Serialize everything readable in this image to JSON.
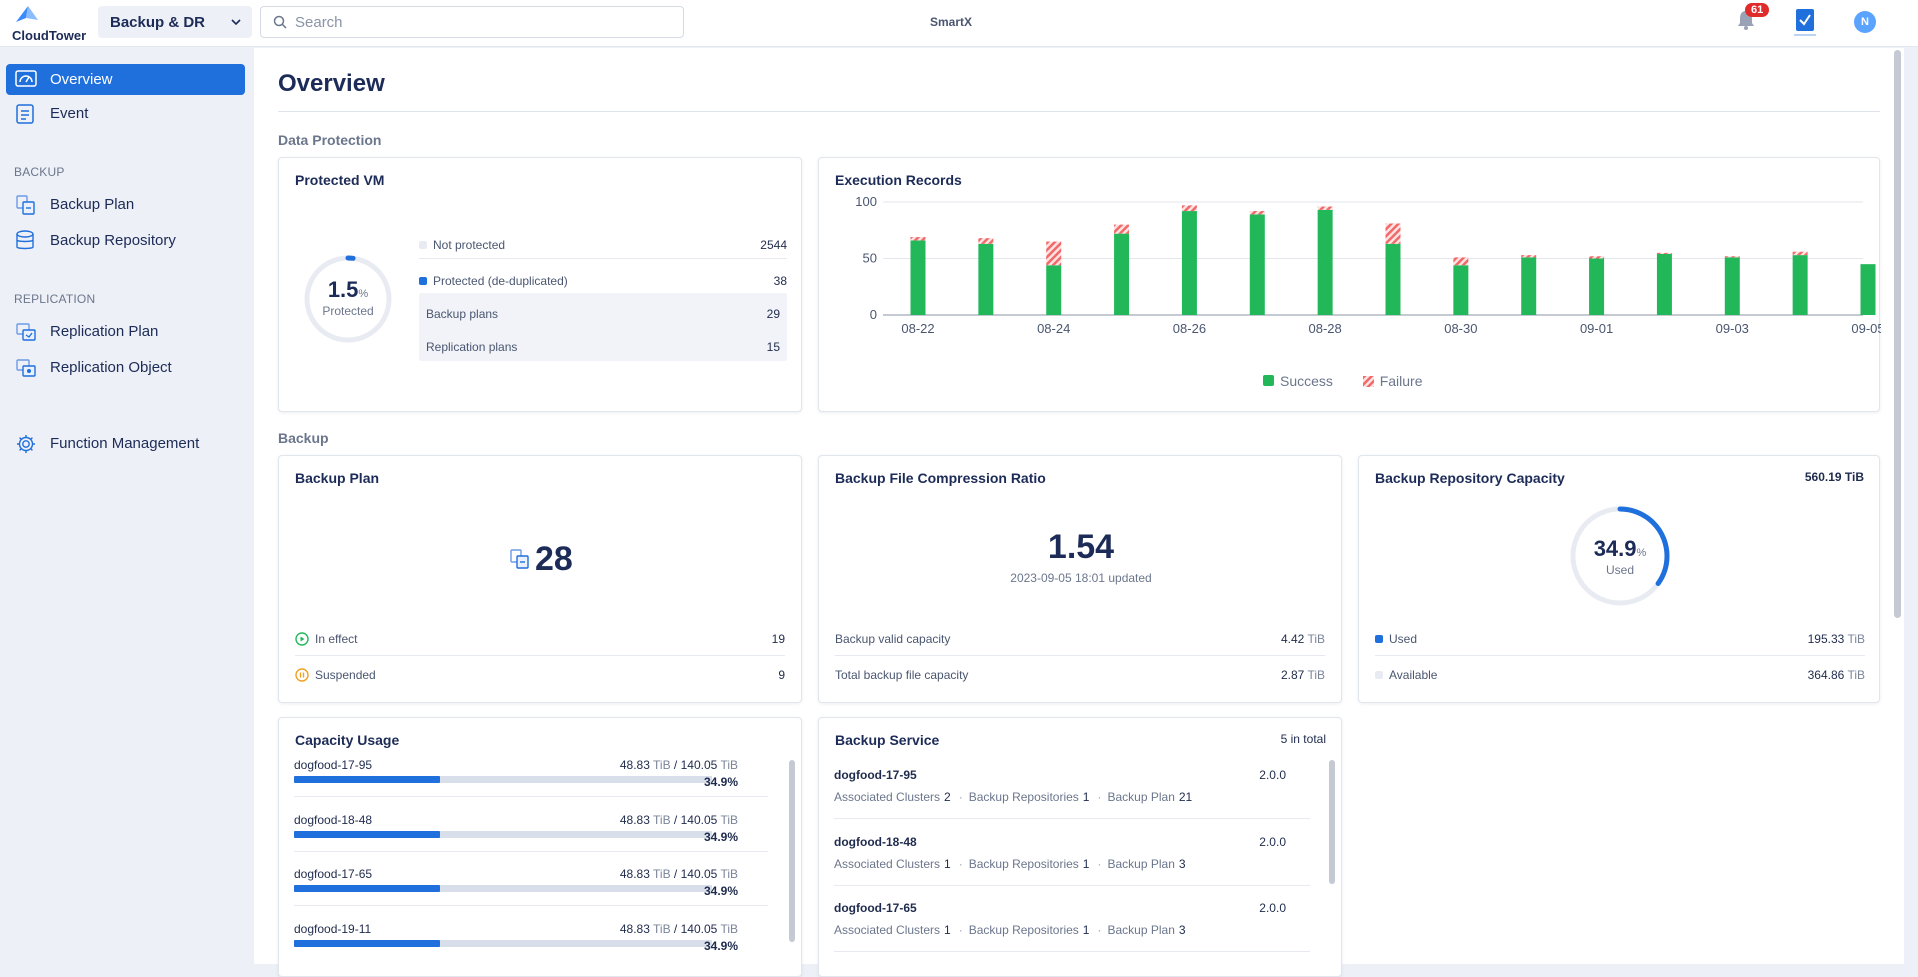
{
  "topbar": {
    "logo_text": "CloudTower",
    "app_switch_label": "Backup & DR",
    "search_placeholder": "Search",
    "org_name": "SmartX",
    "notification_count": "61",
    "avatar_initial": "N"
  },
  "sidebar": {
    "items_top": [
      {
        "label": "Overview",
        "icon": "dashboard-icon",
        "active": true
      },
      {
        "label": "Event",
        "icon": "event-list-icon"
      }
    ],
    "section_backup": "BACKUP",
    "items_backup": [
      {
        "label": "Backup Plan",
        "icon": "backup-plan-icon"
      },
      {
        "label": "Backup Repository",
        "icon": "database-icon"
      }
    ],
    "section_replication": "REPLICATION",
    "items_replication": [
      {
        "label": "Replication Plan",
        "icon": "replication-plan-icon"
      },
      {
        "label": "Replication Object",
        "icon": "replication-object-icon"
      }
    ],
    "function_management": "Function Management"
  },
  "main": {
    "title": "Overview",
    "section_data_protection": "Data Protection",
    "section_backup": "Backup"
  },
  "protected_vm": {
    "title": "Protected VM",
    "percent": "1.5",
    "percent_unit": "%",
    "ring_label": "Protected",
    "ring_fraction": 0.015,
    "rows": [
      {
        "label": "Not protected",
        "value": "2544",
        "color": "#e8ecf2"
      },
      {
        "label": "Protected (de-duplicated)",
        "value": "38",
        "color": "#1f6fdc"
      }
    ],
    "sub_rows": [
      {
        "label": "Backup plans",
        "value": "29"
      },
      {
        "label": "Replication plans",
        "value": "15"
      }
    ]
  },
  "execution_records": {
    "title": "Execution Records",
    "legend_success": "Success",
    "legend_failure": "Failure"
  },
  "chart_data": {
    "type": "bar",
    "stacked": true,
    "title": "Execution Records",
    "categories": [
      "08-22",
      "08-23",
      "08-24",
      "08-25",
      "08-26",
      "08-27",
      "08-28",
      "08-29",
      "08-30",
      "08-31",
      "09-01",
      "09-02",
      "09-03",
      "09-04",
      "09-05"
    ],
    "x_tick_labels": [
      "08-22",
      "08-24",
      "08-26",
      "08-28",
      "08-30",
      "09-01",
      "09-03",
      "09-05"
    ],
    "series": [
      {
        "name": "Success",
        "color": "#22b85a",
        "values": [
          66,
          63,
          44,
          72,
          92,
          89,
          93,
          63,
          44,
          51,
          50,
          54,
          51,
          53,
          45
        ]
      },
      {
        "name": "Failure",
        "color": "#f06a6a",
        "values": [
          3,
          5,
          21,
          8,
          5,
          3,
          3,
          18,
          7,
          2,
          2,
          1,
          1,
          3,
          0
        ]
      }
    ],
    "y_ticks": [
      0,
      50,
      100
    ],
    "ylim": [
      0,
      100
    ],
    "grid": true,
    "legend": "bottom"
  },
  "backup_plan": {
    "title": "Backup Plan",
    "count": "28",
    "rows": [
      {
        "label": "In effect",
        "value": "19"
      },
      {
        "label": "Suspended",
        "value": "9"
      }
    ]
  },
  "compression": {
    "title": "Backup File Compression Ratio",
    "ratio": "1.54",
    "updated": "2023-09-05 18:01 updated",
    "rows": [
      {
        "label": "Backup valid capacity",
        "value": "4.42",
        "unit": "TiB"
      },
      {
        "label": "Total backup file capacity",
        "value": "2.87",
        "unit": "TiB"
      }
    ]
  },
  "repo_capacity": {
    "title": "Backup Repository Capacity",
    "total": "560.19 TiB",
    "percent": "34.9",
    "percent_unit": "%",
    "ring_label": "Used",
    "ring_fraction": 0.349,
    "rows": [
      {
        "label": "Used",
        "value": "195.33",
        "unit": "TiB",
        "color": "#1f6fdc"
      },
      {
        "label": "Available",
        "value": "364.86",
        "unit": "TiB",
        "color": "#e8ecf2"
      }
    ]
  },
  "capacity_usage": {
    "title": "Capacity Usage",
    "items": [
      {
        "name": "dogfood-17-95",
        "used": "48.83",
        "total": "140.05",
        "unit": "TiB",
        "percent": "34.9%",
        "fraction": 0.349
      },
      {
        "name": "dogfood-18-48",
        "used": "48.83",
        "total": "140.05",
        "unit": "TiB",
        "percent": "34.9%",
        "fraction": 0.349
      },
      {
        "name": "dogfood-17-65",
        "used": "48.83",
        "total": "140.05",
        "unit": "TiB",
        "percent": "34.9%",
        "fraction": 0.349
      },
      {
        "name": "dogfood-19-11",
        "used": "48.83",
        "total": "140.05",
        "unit": "TiB",
        "percent": "34.9%",
        "fraction": 0.349
      }
    ]
  },
  "backup_service": {
    "title": "Backup Service",
    "total": "5 in total",
    "label_clusters": "Associated Clusters",
    "label_repos": "Backup Repositories",
    "label_plan": "Backup Plan",
    "items": [
      {
        "name": "dogfood-17-95",
        "version": "2.0.0",
        "clusters": "2",
        "repos": "1",
        "plans": "21"
      },
      {
        "name": "dogfood-18-48",
        "version": "2.0.0",
        "clusters": "1",
        "repos": "1",
        "plans": "3"
      },
      {
        "name": "dogfood-17-65",
        "version": "2.0.0",
        "clusters": "1",
        "repos": "1",
        "plans": "3"
      }
    ]
  }
}
